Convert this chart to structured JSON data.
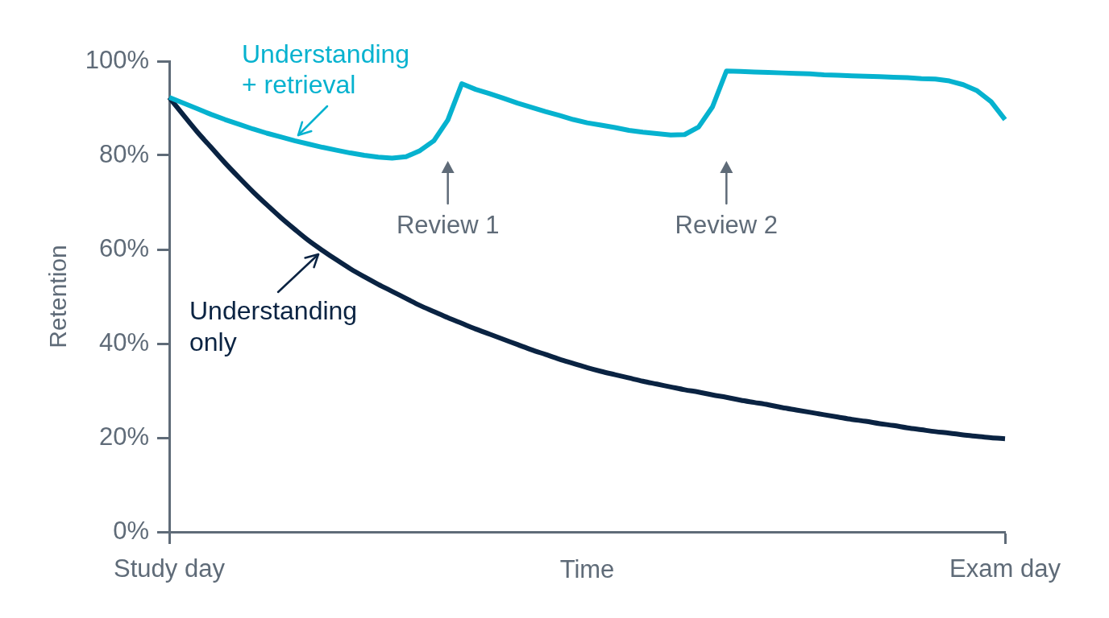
{
  "chart_data": {
    "type": "line",
    "xlabel": "Time",
    "ylabel": "Retention",
    "marker": "none",
    "categories": [
      "Study day",
      null,
      null,
      null,
      null,
      null,
      null,
      null,
      null,
      null,
      null,
      null,
      null,
      null,
      null,
      null,
      null,
      null,
      null,
      null,
      null,
      null,
      null,
      null,
      null,
      null,
      null,
      null,
      null,
      null,
      null,
      null,
      null,
      null,
      null,
      null,
      null,
      null,
      null,
      null,
      null,
      null,
      null,
      null,
      null,
      null,
      null,
      null,
      null,
      null,
      null,
      null,
      null,
      null,
      null,
      null,
      null,
      null,
      null,
      null,
      "Exam day"
    ],
    "ylim": [
      0,
      100
    ],
    "yticks": [
      {
        "value": 0,
        "label": "0%"
      },
      {
        "value": 20,
        "label": "20%"
      },
      {
        "value": 40,
        "label": "40%"
      },
      {
        "value": 60,
        "label": "60%"
      },
      {
        "value": 80,
        "label": "80%"
      },
      {
        "value": 100,
        "label": "100%"
      }
    ],
    "series": [
      {
        "name": "Understanding + retrieval",
        "color": "#06b2cf",
        "values": [
          92.3,
          91.1,
          89.9,
          88.7,
          87.6,
          86.6,
          85.6,
          84.7,
          83.9,
          83.1,
          82.4,
          81.7,
          81.1,
          80.5,
          80.0,
          79.6,
          79.4,
          79.7,
          81.0,
          83.1,
          87.5,
          95.2,
          94.0,
          93.1,
          92.1,
          91.1,
          90.2,
          89.3,
          88.5,
          87.6,
          86.9,
          86.4,
          85.9,
          85.3,
          84.9,
          84.6,
          84.3,
          84.4,
          86.0,
          90.3,
          97.9,
          97.8,
          97.7,
          97.6,
          97.5,
          97.4,
          97.3,
          97.1,
          97.0,
          96.9,
          96.8,
          96.7,
          96.6,
          96.5,
          96.3,
          96.2,
          95.8,
          95.0,
          93.7,
          91.4,
          87.6
        ]
      },
      {
        "name": "Understanding only",
        "color": "#0a2342",
        "values": [
          92.3,
          88.6,
          85.0,
          81.7,
          78.4,
          75.3,
          72.3,
          69.5,
          66.8,
          64.3,
          61.9,
          59.8,
          57.8,
          55.9,
          54.2,
          52.6,
          51.1,
          49.6,
          48.1,
          46.8,
          45.5,
          44.3,
          43.1,
          42.0,
          40.9,
          39.8,
          38.7,
          37.7,
          36.7,
          35.8,
          34.9,
          34.1,
          33.4,
          32.7,
          32.0,
          31.4,
          30.8,
          30.2,
          29.7,
          29.1,
          28.6,
          28.0,
          27.5,
          27.0,
          26.4,
          25.9,
          25.4,
          24.9,
          24.4,
          23.9,
          23.5,
          23.0,
          22.6,
          22.1,
          21.7,
          21.3,
          21.0,
          20.6,
          20.3,
          20.0,
          19.8
        ]
      }
    ],
    "annotations": [
      "Review 1",
      "Review 2"
    ]
  }
}
